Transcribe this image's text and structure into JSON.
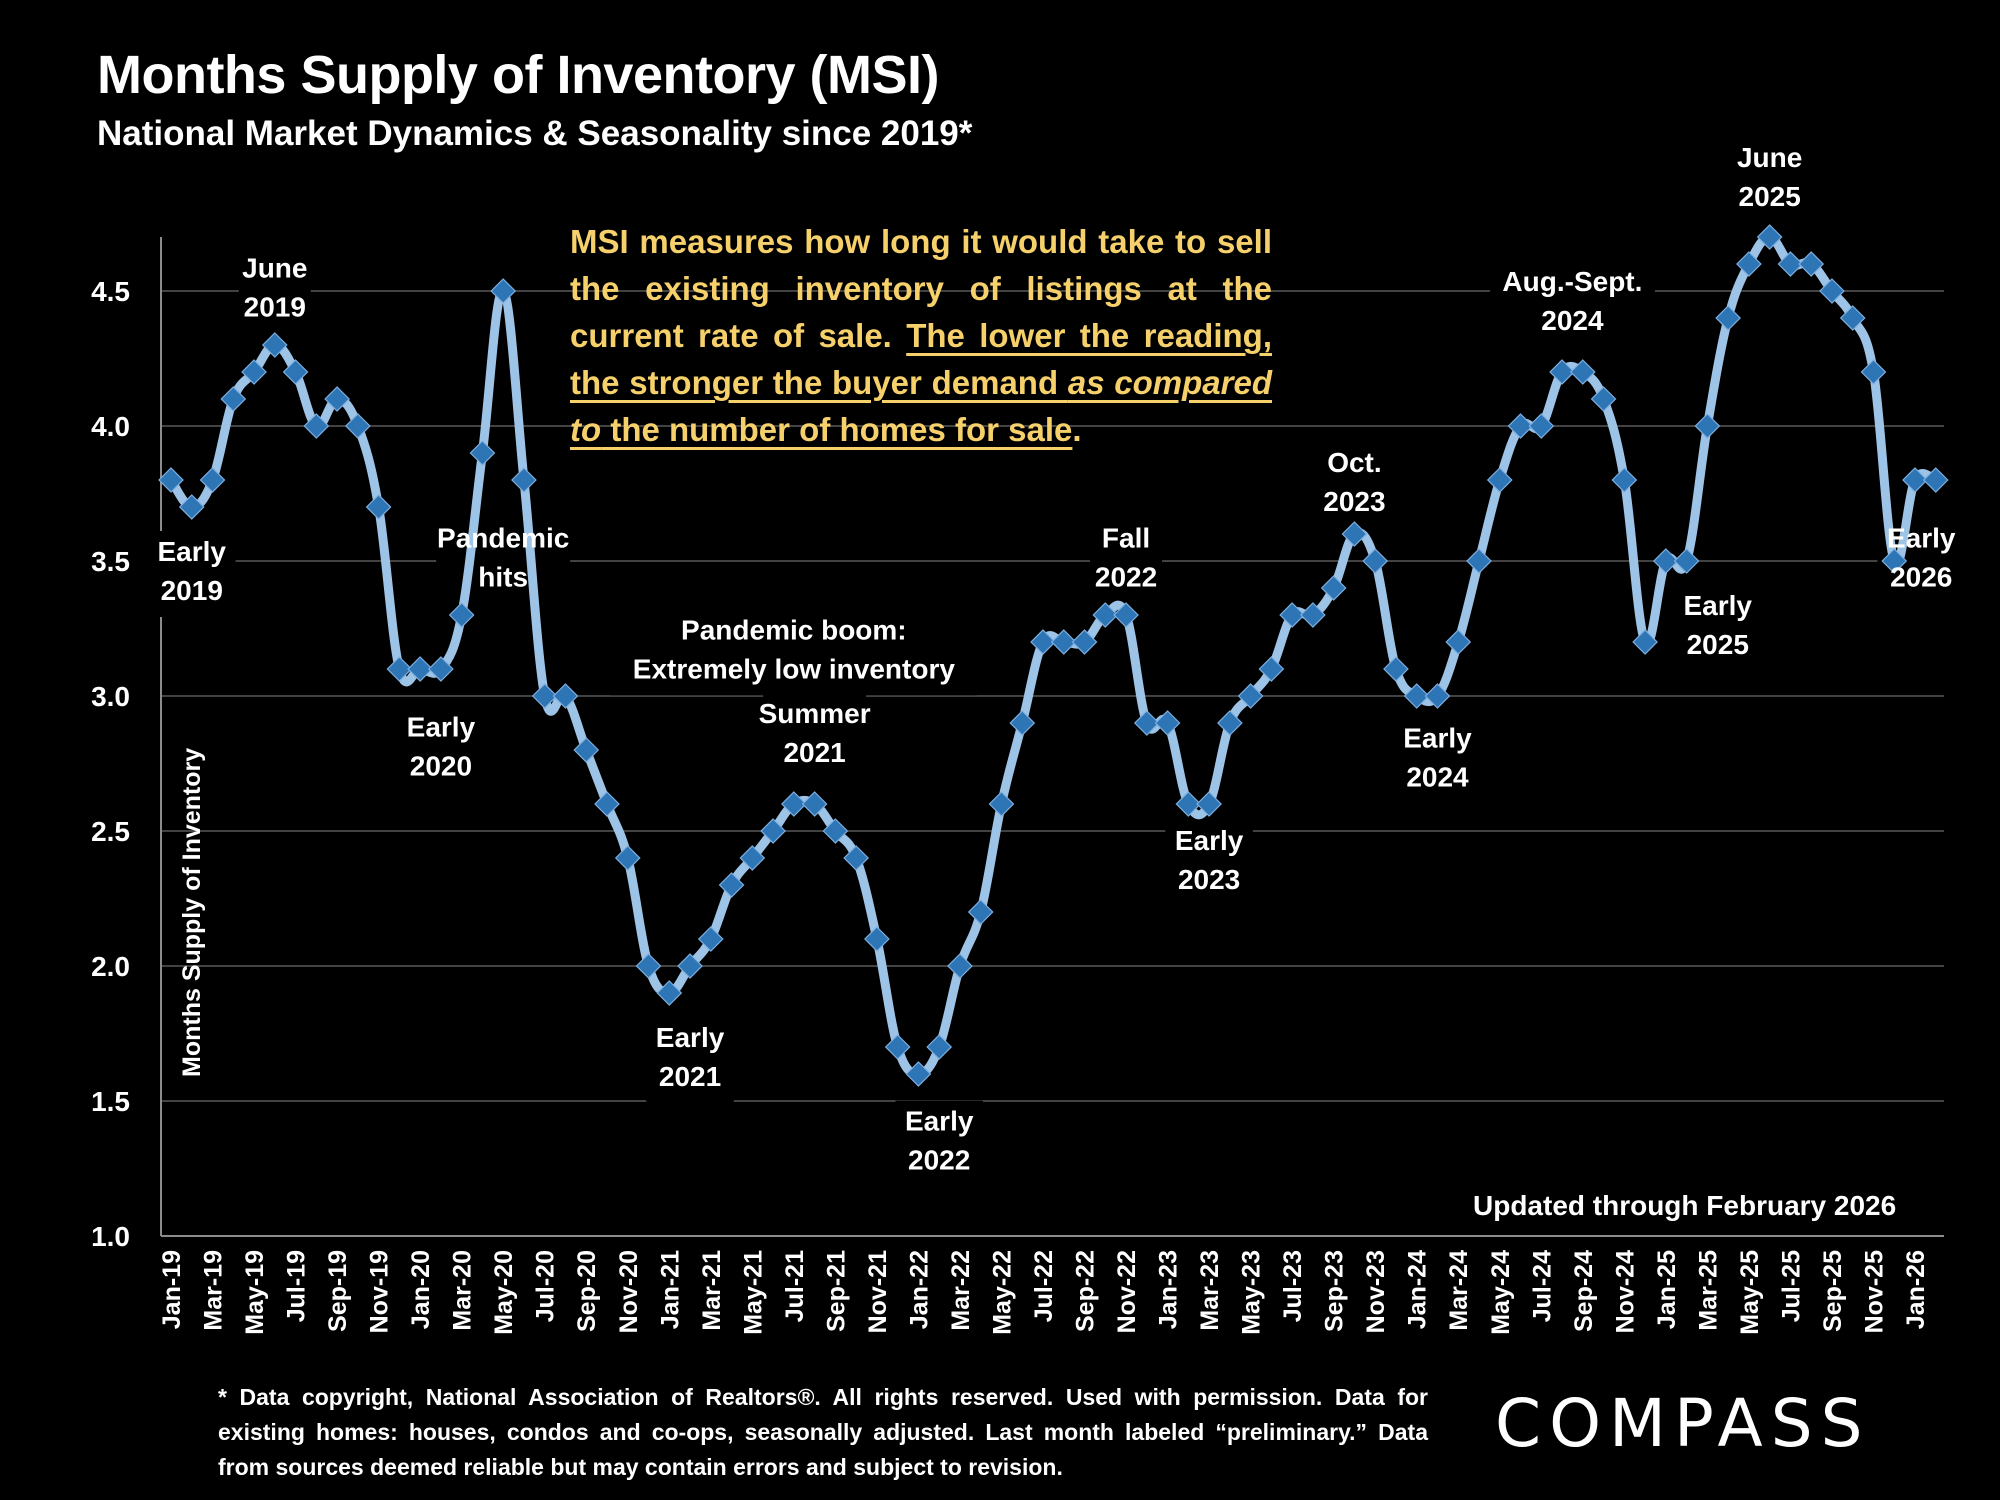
{
  "header": {
    "title": "Months Supply of Inventory (MSI)",
    "subtitle": "National Market Dynamics & Seasonality since 2019*"
  },
  "note": {
    "part1": "MSI measures how long it would take to sell the existing inventory of listings at the current rate of sale. ",
    "part2_underlined": "The lower the reading, the stronger the buyer demand ",
    "part3_italic_underlined": "as compared to",
    "part4_underlined": " the number of homes for sale",
    "part5": ".",
    "color": "#f5d06b"
  },
  "updated_text": "Updated through February 2026",
  "footer": {
    "text": "* Data copyright, National Association of Realtors®. All rights reserved. Used with permission. Data for existing homes: houses, condos and co-ops, seasonally adjusted. Last month labeled “preliminary.” Data from sources deemed reliable but may contain errors and subject to revision."
  },
  "logo": {
    "text": "COMPASS"
  },
  "colors": {
    "background": "#000000",
    "line": "#9dc3e6",
    "marker": "#2e75b6",
    "gridline": "#595959"
  },
  "chart_data": {
    "type": "line",
    "title": "Months Supply of Inventory (MSI)",
    "xlabel": "",
    "ylabel": "Months Supply of Inventory",
    "ylim": [
      1.0,
      4.7
    ],
    "yticks": [
      "1.0",
      "1.5",
      "2.0",
      "2.5",
      "3.0",
      "3.5",
      "4.0",
      "4.5"
    ],
    "ytick_values": [
      1.0,
      1.5,
      2.0,
      2.5,
      3.0,
      3.5,
      4.0,
      4.5
    ],
    "grid": true,
    "legend": "none",
    "x_tick_labels": [
      "Jan-19",
      "Mar-19",
      "May-19",
      "Jul-19",
      "Sep-19",
      "Nov-19",
      "Jan-20",
      "Mar-20",
      "May-20",
      "Jul-20",
      "Sep-20",
      "Nov-20",
      "Jan-21",
      "Mar-21",
      "May-21",
      "Jul-21",
      "Sep-21",
      "Nov-21",
      "Jan-22",
      "Mar-22",
      "May-22",
      "Jul-22",
      "Sep-22",
      "Nov-22",
      "Jan-23",
      "Mar-23",
      "May-23",
      "Jul-23",
      "Sep-23",
      "Nov-23",
      "Jan-24",
      "Mar-24",
      "May-24",
      "Jul-24",
      "Sep-24",
      "Nov-24",
      "Jan-25",
      "Mar-25",
      "May-25",
      "Jul-25",
      "Sep-25",
      "Nov-25",
      "Jan-26"
    ],
    "x": [
      "Jan-19",
      "Feb-19",
      "Mar-19",
      "Apr-19",
      "May-19",
      "Jun-19",
      "Jul-19",
      "Aug-19",
      "Sep-19",
      "Oct-19",
      "Nov-19",
      "Dec-19",
      "Jan-20",
      "Feb-20",
      "Mar-20",
      "Apr-20",
      "May-20",
      "Jun-20",
      "Jul-20",
      "Aug-20",
      "Sep-20",
      "Oct-20",
      "Nov-20",
      "Dec-20",
      "Jan-21",
      "Feb-21",
      "Mar-21",
      "Apr-21",
      "May-21",
      "Jun-21",
      "Jul-21",
      "Aug-21",
      "Sep-21",
      "Oct-21",
      "Nov-21",
      "Dec-21",
      "Jan-22",
      "Feb-22",
      "Mar-22",
      "Apr-22",
      "May-22",
      "Jun-22",
      "Jul-22",
      "Aug-22",
      "Sep-22",
      "Oct-22",
      "Nov-22",
      "Dec-22",
      "Jan-23",
      "Feb-23",
      "Mar-23",
      "Apr-23",
      "May-23",
      "Jun-23",
      "Jul-23",
      "Aug-23",
      "Sep-23",
      "Oct-23",
      "Nov-23",
      "Dec-23",
      "Jan-24",
      "Feb-24",
      "Mar-24",
      "Apr-24",
      "May-24",
      "Jun-24",
      "Jul-24",
      "Aug-24",
      "Sep-24",
      "Oct-24",
      "Nov-24",
      "Dec-24",
      "Jan-25",
      "Feb-25",
      "Mar-25",
      "Apr-25",
      "May-25",
      "Jun-25",
      "Jul-25",
      "Aug-25",
      "Sep-25",
      "Oct-25",
      "Nov-25",
      "Dec-25",
      "Jan-26",
      "Feb-26"
    ],
    "series": [
      {
        "name": "Months Supply of Inventory",
        "values": [
          3.8,
          3.7,
          3.8,
          4.1,
          4.2,
          4.3,
          4.2,
          4.0,
          4.1,
          4.0,
          3.7,
          3.1,
          3.1,
          3.1,
          3.3,
          3.9,
          4.5,
          3.8,
          3.0,
          3.0,
          2.8,
          2.6,
          2.4,
          2.0,
          1.9,
          2.0,
          2.1,
          2.3,
          2.4,
          2.5,
          2.6,
          2.6,
          2.5,
          2.4,
          2.1,
          1.7,
          1.6,
          1.7,
          2.0,
          2.2,
          2.6,
          2.9,
          3.2,
          3.2,
          3.2,
          3.3,
          3.3,
          2.9,
          2.9,
          2.6,
          2.6,
          2.9,
          3.0,
          3.1,
          3.3,
          3.3,
          3.4,
          3.6,
          3.5,
          3.1,
          3.0,
          3.0,
          3.2,
          3.5,
          3.8,
          4.0,
          4.0,
          4.2,
          4.2,
          4.1,
          3.8,
          3.2,
          3.5,
          3.5,
          4.0,
          4.4,
          4.6,
          4.7,
          4.6,
          4.6,
          4.5,
          4.4,
          4.2,
          3.5,
          3.8,
          3.8
        ]
      }
    ],
    "annotations": [
      {
        "lines": [
          "Early",
          "2019"
        ],
        "month_index": 1,
        "value": 3.5
      },
      {
        "lines": [
          "June",
          "2019"
        ],
        "month_index": 5,
        "value": 4.55
      },
      {
        "lines": [
          "Early",
          "2020"
        ],
        "month_index": 13,
        "value": 2.85
      },
      {
        "lines": [
          "Pandemic",
          "hits"
        ],
        "month_index": 16,
        "value": 3.55
      },
      {
        "lines": [
          "Pandemic boom:",
          "Extremely low inventory"
        ],
        "month_index": 30,
        "value": 3.21
      },
      {
        "lines": [
          "Summer",
          "2021"
        ],
        "month_index": 31,
        "value": 2.9
      },
      {
        "lines": [
          "Early",
          "2021"
        ],
        "month_index": 25,
        "value": 1.7
      },
      {
        "lines": [
          "Early",
          "2022"
        ],
        "month_index": 37,
        "value": 1.39
      },
      {
        "lines": [
          "Fall",
          "2022"
        ],
        "month_index": 46,
        "value": 3.55
      },
      {
        "lines": [
          "Early",
          "2023"
        ],
        "month_index": 50,
        "value": 2.43
      },
      {
        "lines": [
          "Oct.",
          "2023"
        ],
        "month_index": 57,
        "value": 3.83
      },
      {
        "lines": [
          "Early",
          "2024"
        ],
        "month_index": 61,
        "value": 2.81
      },
      {
        "lines": [
          "Aug.-Sept.",
          "2024"
        ],
        "month_index": 67.5,
        "value": 4.5
      },
      {
        "lines": [
          "Early",
          "2025"
        ],
        "month_index": 74.5,
        "value": 3.3
      },
      {
        "lines": [
          "June",
          "2025"
        ],
        "month_index": 77,
        "value": 4.96
      },
      {
        "lines": [
          "Early",
          "2026"
        ],
        "month_index": 84.3,
        "value": 3.55
      }
    ]
  }
}
